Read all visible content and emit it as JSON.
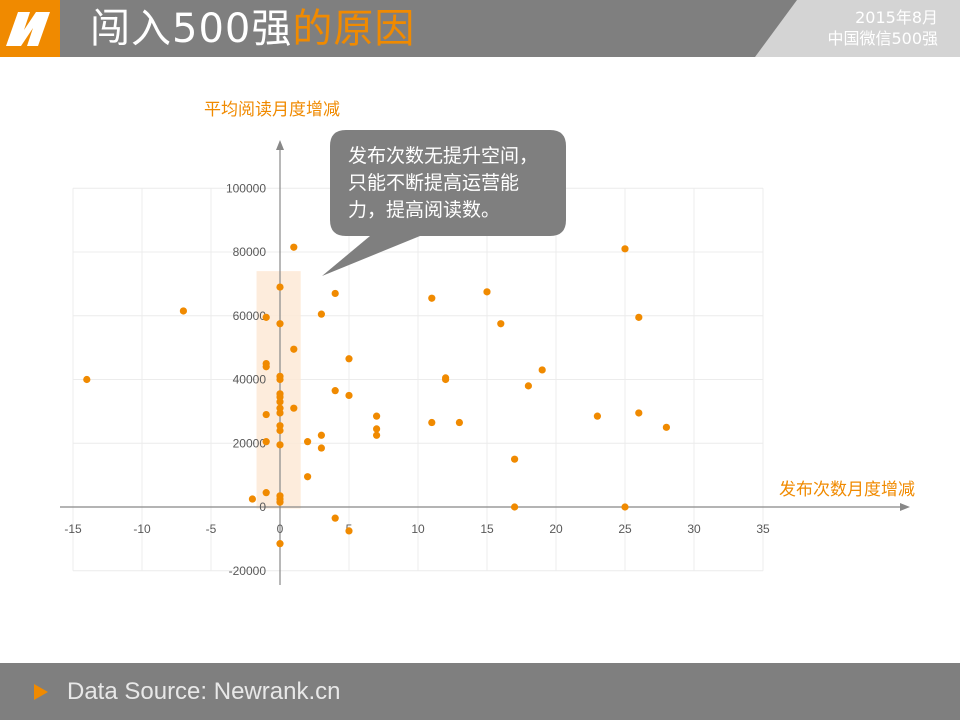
{
  "header": {
    "title_white": "闯入500强",
    "title_orange": "的原因",
    "date": "2015年8月",
    "subtitle": "中国微信500强"
  },
  "logo": {
    "icon": "n-logo-icon",
    "color": "#f08a00"
  },
  "callout": {
    "line1": "发布次数无提升空间，",
    "line2": "只能不断提高运营能",
    "line3": "力，提高阅读数。"
  },
  "footer": {
    "source": "Data Source: Newrank.cn"
  },
  "colors": {
    "accent": "#f08a00",
    "header_bg": "#7f7f7f",
    "highlight": "#fde9d6",
    "callout_bg": "#7f7f7f"
  },
  "chart_data": {
    "type": "scatter",
    "xlabel": "发布次数月度增减",
    "ylabel": "平均阅读月度增减",
    "xlim": [
      -15,
      35
    ],
    "ylim": [
      -20000,
      100000
    ],
    "xticks": [
      -15,
      -10,
      -5,
      0,
      5,
      10,
      15,
      20,
      25,
      30,
      35
    ],
    "yticks": [
      -20000,
      0,
      20000,
      40000,
      60000,
      80000,
      100000
    ],
    "grid": true,
    "highlight_band": {
      "x": [
        -1.7,
        1.5
      ],
      "y": [
        -500,
        74000
      ]
    },
    "points": [
      [
        -14,
        40000
      ],
      [
        -7,
        61500
      ],
      [
        -2,
        2500
      ],
      [
        -1,
        59500
      ],
      [
        -1,
        45000
      ],
      [
        -1,
        44000
      ],
      [
        -1,
        29000
      ],
      [
        -1,
        20500
      ],
      [
        -1,
        4500
      ],
      [
        0,
        69000
      ],
      [
        0,
        57500
      ],
      [
        0,
        41000
      ],
      [
        0,
        40000
      ],
      [
        0,
        35500
      ],
      [
        0,
        34500
      ],
      [
        0,
        33000
      ],
      [
        0,
        31000
      ],
      [
        0,
        29500
      ],
      [
        0,
        25500
      ],
      [
        0,
        24000
      ],
      [
        0,
        19500
      ],
      [
        0,
        3500
      ],
      [
        0,
        2500
      ],
      [
        0,
        1500
      ],
      [
        0,
        -11500
      ],
      [
        1,
        81500
      ],
      [
        1,
        49500
      ],
      [
        1,
        31000
      ],
      [
        2,
        20500
      ],
      [
        2,
        9500
      ],
      [
        3,
        60500
      ],
      [
        3,
        22500
      ],
      [
        3,
        18500
      ],
      [
        4,
        67000
      ],
      [
        4,
        36500
      ],
      [
        4,
        -3500
      ],
      [
        5,
        46500
      ],
      [
        5,
        35000
      ],
      [
        5,
        -7500
      ],
      [
        7,
        28500
      ],
      [
        7,
        24500
      ],
      [
        7,
        22500
      ],
      [
        11,
        65500
      ],
      [
        11,
        26500
      ],
      [
        12,
        40500
      ],
      [
        12,
        40000
      ],
      [
        13,
        26500
      ],
      [
        15,
        67500
      ],
      [
        16,
        57500
      ],
      [
        17,
        15000
      ],
      [
        17,
        0
      ],
      [
        18,
        38000
      ],
      [
        19,
        43000
      ],
      [
        23,
        28500
      ],
      [
        25,
        81000
      ],
      [
        25,
        0
      ],
      [
        26,
        59500
      ],
      [
        26,
        29500
      ],
      [
        28,
        25000
      ]
    ]
  }
}
